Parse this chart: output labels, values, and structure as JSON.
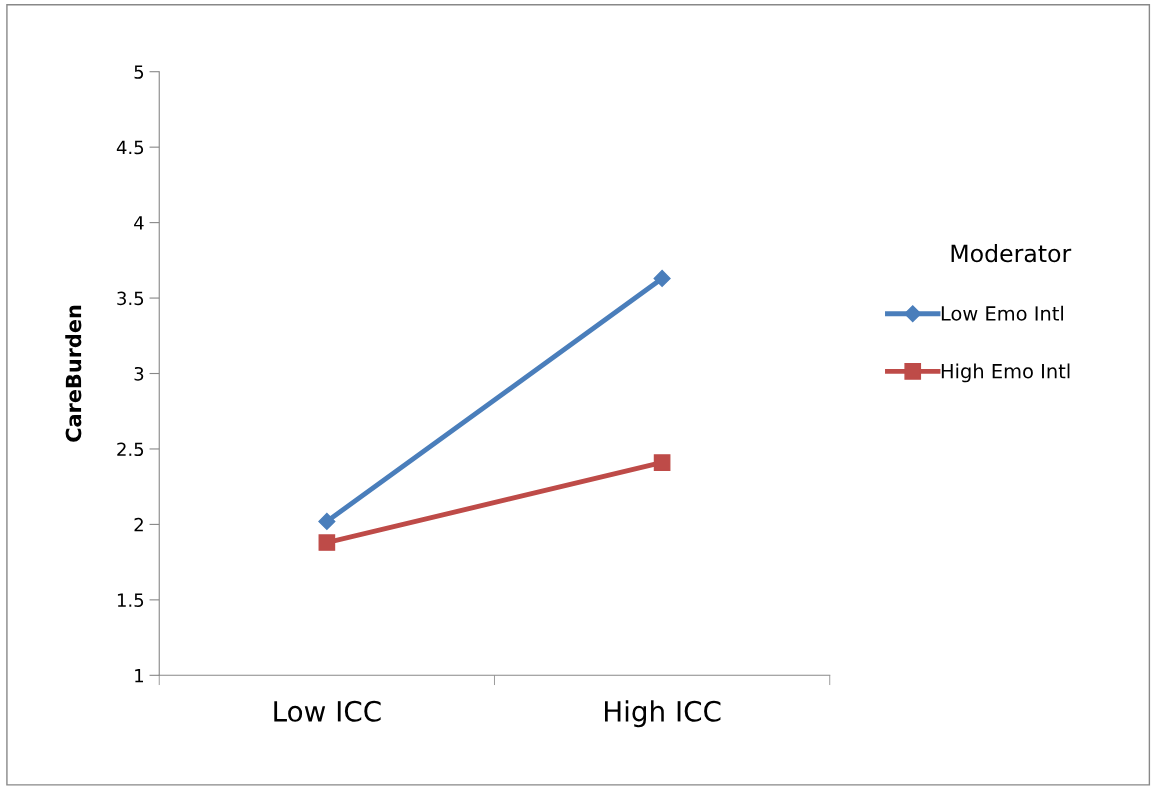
{
  "chart_data": {
    "type": "line",
    "ylabel": "CareBurden",
    "legend_title": "Moderator",
    "categories": [
      "Low ICC",
      "High ICC"
    ],
    "series": [
      {
        "name": "Low Emo Intl",
        "color": "#4a7ebb",
        "marker": "diamond",
        "values": [
          2.02,
          3.63
        ]
      },
      {
        "name": "High Emo Intl",
        "color": "#be4b48",
        "marker": "square",
        "values": [
          1.88,
          2.41
        ]
      }
    ],
    "ylim": [
      1,
      5
    ],
    "yticks": [
      1,
      1.5,
      2,
      2.5,
      3,
      3.5,
      4,
      4.5,
      5
    ],
    "grid": false,
    "legend": "right",
    "line_style": "solid"
  }
}
